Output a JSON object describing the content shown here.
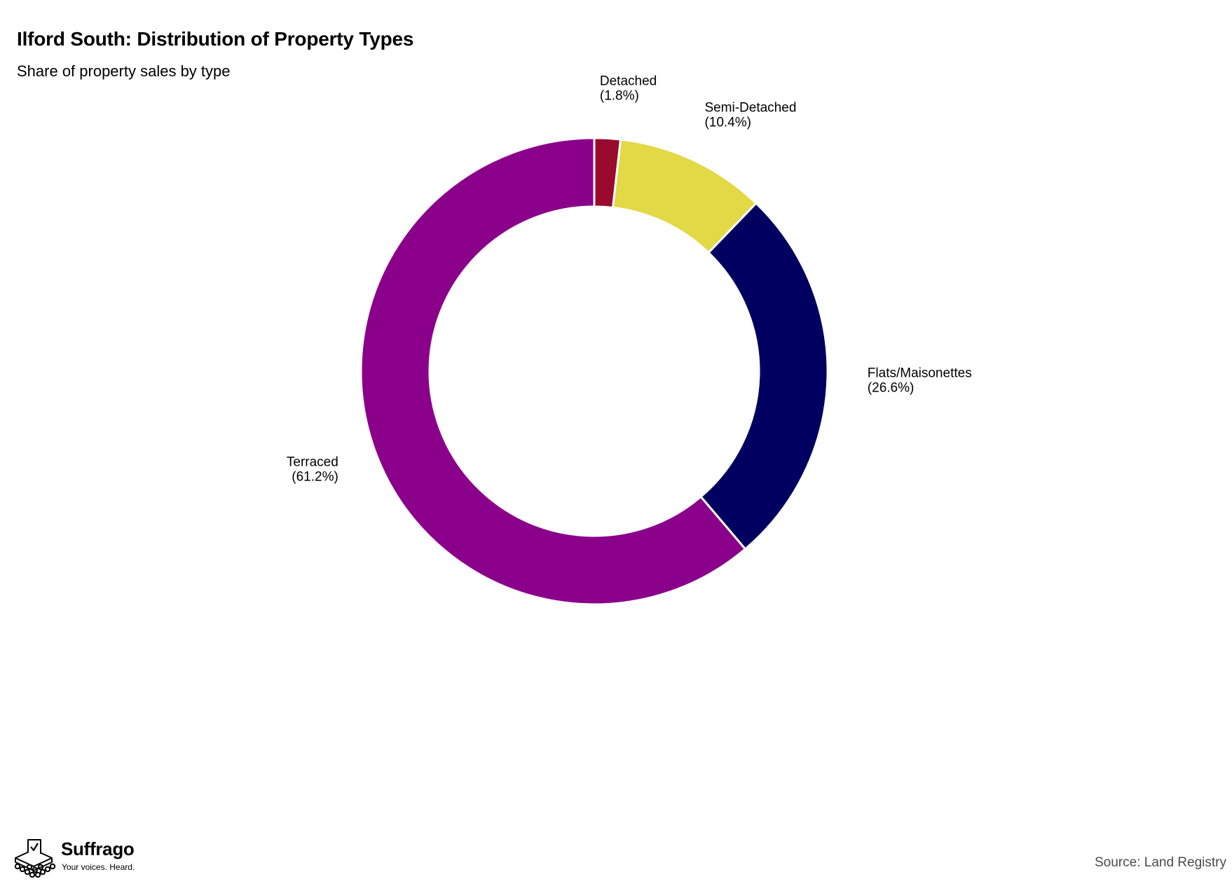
{
  "header": {
    "title": "Ilford South: Distribution of Property Types",
    "subtitle": "Share of property sales by type"
  },
  "footer": {
    "brand_name": "Suffrago",
    "brand_tagline": "Your voices. Heard.",
    "source": "Source: Land Registry"
  },
  "chart_data": {
    "type": "pie",
    "style": "donut",
    "title": "Ilford South: Distribution of Property Types",
    "subtitle": "Share of property sales by type",
    "start": "12 o'clock, clockwise",
    "slices": [
      {
        "name": "Detached",
        "value": 1.8,
        "label": "(1.8%)",
        "color": "#990a2c"
      },
      {
        "name": "Semi-Detached",
        "value": 10.4,
        "label": "(10.4%)",
        "color": "#e3d845"
      },
      {
        "name": "Flats/Maisonettes",
        "value": 26.6,
        "label": "(26.6%)",
        "color": "#000060"
      },
      {
        "name": "Terraced",
        "value": 61.2,
        "label": "(61.2%)",
        "color": "#8b008b"
      }
    ]
  }
}
